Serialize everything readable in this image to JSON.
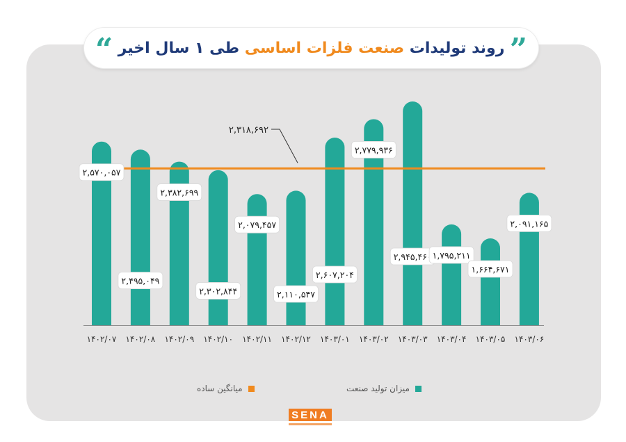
{
  "title": {
    "left_quote": "“",
    "right_quote": "”",
    "part1": "روند تولیدات ",
    "part2": "صنعت فلزات اساسی",
    "part3": " طی ۱ سال اخیر"
  },
  "legend": {
    "items": [
      {
        "label": "میزان تولید صنعت",
        "color": "#23a898"
      },
      {
        "label": "میانگین ساده",
        "color": "#f08a1e"
      }
    ]
  },
  "logo": {
    "text": "SENA"
  },
  "colors": {
    "bar": "#23a898",
    "average": "#f08a1e",
    "panel": "#e5e4e4",
    "axis": "#8a8a8a",
    "title_dark": "#1f3a78"
  },
  "chart_data": {
    "type": "bar",
    "categories": [
      "۱۴۰۲/۰۷",
      "۱۴۰۲/۰۸",
      "۱۴۰۲/۰۹",
      "۱۴۰۲/۱۰",
      "۱۴۰۲/۱۱",
      "۱۴۰۲/۱۲",
      "۱۴۰۳/۰۱",
      "۱۴۰۳/۰۲",
      "۱۴۰۳/۰۳",
      "۱۴۰۳/۰۴",
      "۱۴۰۳/۰۵",
      "۱۴۰۳/۰۶"
    ],
    "values": [
      2570057,
      2495049,
      2382699,
      2302844,
      2079457,
      2110547,
      2607204,
      2779936,
      2945460,
      1795211,
      1664671,
      2091165
    ],
    "data_labels": [
      "۲,۵۷۰,۰۵۷",
      "۲,۴۹۵,۰۴۹",
      "۲,۳۸۲,۶۹۹",
      "۲,۳۰۲,۸۴۴",
      "۲,۰۷۹,۴۵۷",
      "۲,۱۱۰,۵۴۷",
      "۲,۶۰۷,۲۰۴",
      "۲,۷۷۹,۹۳۶",
      "۲,۹۴۵,۴۶۰",
      "۱,۷۹۵,۲۱۱",
      "۱,۶۶۴,۶۷۱",
      "۲,۰۹۱,۱۶۵"
    ],
    "label_position": [
      "upper",
      "lower",
      "upper",
      "lower",
      "upper",
      "lower",
      "lower",
      "upper",
      "lower",
      "upper",
      "upper",
      "upper"
    ],
    "average": {
      "value": 2318692,
      "label": "۲,۳۱۸,۶۹۲"
    },
    "title": "",
    "xlabel": "",
    "ylabel": "",
    "grid": false,
    "legend_position": "bottom"
  }
}
